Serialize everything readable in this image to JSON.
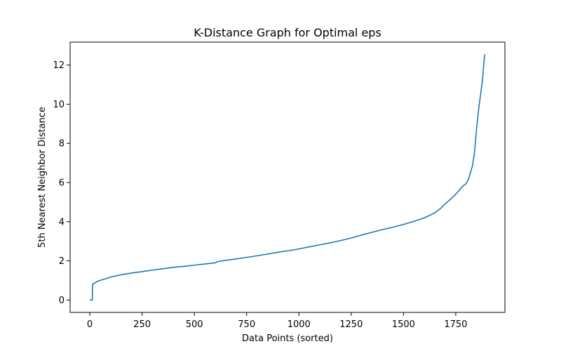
{
  "chart_data": {
    "type": "line",
    "title": "K-Distance Graph for Optimal eps",
    "xlabel": "Data Points (sorted)",
    "ylabel": "5th Nearest Neighbor Distance",
    "xlim": [
      -94,
      1985
    ],
    "ylim": [
      -0.63,
      13.17
    ],
    "xticks": [
      0,
      250,
      500,
      750,
      1000,
      1250,
      1500,
      1750
    ],
    "xtick_labels": [
      "0",
      "250",
      "500",
      "750",
      "1000",
      "1250",
      "1500",
      "1750"
    ],
    "yticks": [
      0,
      2,
      4,
      6,
      8,
      10,
      12
    ],
    "ytick_labels": [
      "0",
      "2",
      "4",
      "6",
      "8",
      "10",
      "12"
    ],
    "grid": false,
    "line_color": "#1f77b4",
    "series": [
      {
        "x": [
          0,
          12,
          13,
          20,
          40,
          60,
          80,
          100,
          150,
          200,
          250,
          300,
          350,
          400,
          450,
          500,
          550,
          600,
          610,
          650,
          700,
          750,
          800,
          850,
          900,
          950,
          1000,
          1050,
          1100,
          1150,
          1200,
          1250,
          1300,
          1350,
          1400,
          1450,
          1500,
          1550,
          1600,
          1650,
          1680,
          1700,
          1720,
          1740,
          1760,
          1780,
          1800,
          1810,
          1820,
          1830,
          1835,
          1840,
          1845,
          1850,
          1855,
          1860,
          1865,
          1870,
          1875,
          1880,
          1882,
          1885,
          1888,
          1890
        ],
        "y": [
          0.0,
          0.0,
          0.8,
          0.85,
          0.97,
          1.04,
          1.1,
          1.18,
          1.29,
          1.38,
          1.45,
          1.53,
          1.6,
          1.67,
          1.72,
          1.78,
          1.84,
          1.9,
          1.96,
          2.03,
          2.1,
          2.18,
          2.26,
          2.35,
          2.44,
          2.52,
          2.61,
          2.72,
          2.82,
          2.92,
          3.04,
          3.17,
          3.32,
          3.46,
          3.6,
          3.72,
          3.86,
          4.02,
          4.2,
          4.45,
          4.7,
          4.92,
          5.1,
          5.3,
          5.52,
          5.78,
          5.95,
          6.15,
          6.5,
          6.85,
          7.2,
          7.6,
          8.2,
          8.8,
          9.3,
          9.8,
          10.2,
          10.6,
          11.0,
          11.5,
          11.8,
          12.2,
          12.45,
          12.55
        ]
      }
    ]
  }
}
